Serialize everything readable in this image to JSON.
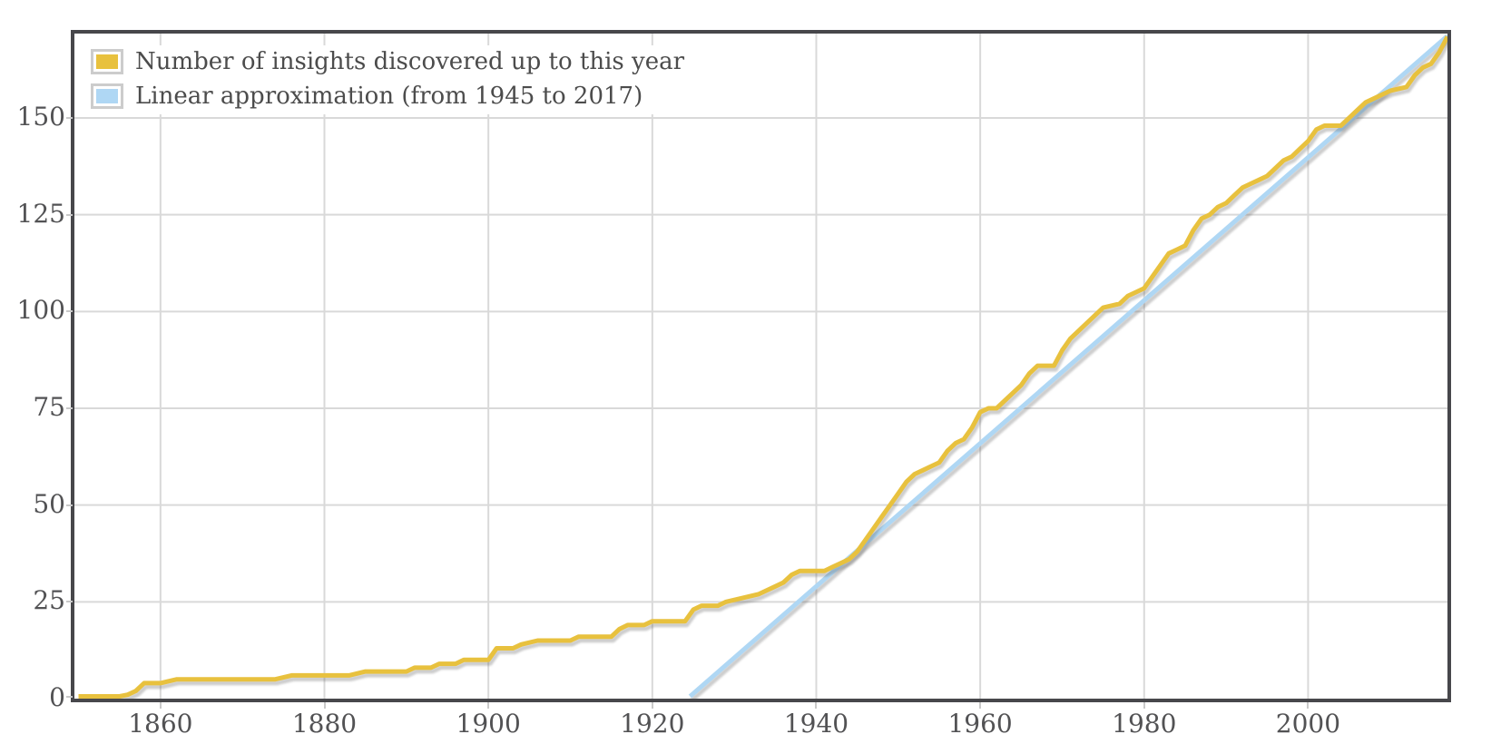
{
  "chart_data": {
    "type": "line",
    "title": "",
    "grid": true,
    "legend_position": "top-left",
    "legend": [
      {
        "label": "Number of insights discovered up to this year",
        "color": "#E8C13E"
      },
      {
        "label": "Linear approximation (from 1945 to 2017)",
        "color": "#AFD7F4"
      }
    ],
    "x_axis": {
      "min": 1849.5,
      "max": 2017,
      "ticks": [
        1860,
        1880,
        1900,
        1920,
        1940,
        1960,
        1980,
        2000
      ]
    },
    "y_axis": {
      "min": 0,
      "max": 171.8,
      "ticks": [
        0,
        25,
        50,
        75,
        100,
        125,
        150
      ]
    },
    "series": [
      {
        "name": "Number of insights discovered up to this year",
        "color": "#E8C13E",
        "points": [
          [
            1850,
            0
          ],
          [
            1855,
            0
          ],
          [
            1856,
            1
          ],
          [
            1857,
            2
          ],
          [
            1858,
            4
          ],
          [
            1860,
            4
          ],
          [
            1862,
            5
          ],
          [
            1874,
            5
          ],
          [
            1876,
            6
          ],
          [
            1883,
            6
          ],
          [
            1885,
            7
          ],
          [
            1890,
            7
          ],
          [
            1891,
            8
          ],
          [
            1893,
            8
          ],
          [
            1894,
            9
          ],
          [
            1896,
            9
          ],
          [
            1897,
            10
          ],
          [
            1900,
            10
          ],
          [
            1901,
            13
          ],
          [
            1903,
            13
          ],
          [
            1904,
            14
          ],
          [
            1906,
            15
          ],
          [
            1910,
            15
          ],
          [
            1911,
            16
          ],
          [
            1915,
            16
          ],
          [
            1916,
            18
          ],
          [
            1917,
            19
          ],
          [
            1919,
            19
          ],
          [
            1920,
            20
          ],
          [
            1924,
            20
          ],
          [
            1925,
            23
          ],
          [
            1926,
            24
          ],
          [
            1928,
            24
          ],
          [
            1929,
            25
          ],
          [
            1931,
            26
          ],
          [
            1933,
            27
          ],
          [
            1934,
            28
          ],
          [
            1935,
            29
          ],
          [
            1936,
            30
          ],
          [
            1937,
            32
          ],
          [
            1938,
            33
          ],
          [
            1941,
            33
          ],
          [
            1942,
            34
          ],
          [
            1943,
            35
          ],
          [
            1944,
            36
          ],
          [
            1945,
            38
          ],
          [
            1946,
            41
          ],
          [
            1947,
            44
          ],
          [
            1948,
            47
          ],
          [
            1949,
            50
          ],
          [
            1950,
            53
          ],
          [
            1951,
            56
          ],
          [
            1952,
            58
          ],
          [
            1953,
            59
          ],
          [
            1954,
            60
          ],
          [
            1955,
            61
          ],
          [
            1956,
            64
          ],
          [
            1957,
            66
          ],
          [
            1958,
            67
          ],
          [
            1959,
            70
          ],
          [
            1960,
            74
          ],
          [
            1961,
            75
          ],
          [
            1962,
            75
          ],
          [
            1963,
            77
          ],
          [
            1964,
            79
          ],
          [
            1965,
            81
          ],
          [
            1966,
            84
          ],
          [
            1967,
            86
          ],
          [
            1969,
            86
          ],
          [
            1970,
            90
          ],
          [
            1971,
            93
          ],
          [
            1972,
            95
          ],
          [
            1973,
            97
          ],
          [
            1974,
            99
          ],
          [
            1975,
            101
          ],
          [
            1977,
            102
          ],
          [
            1978,
            104
          ],
          [
            1979,
            105
          ],
          [
            1980,
            106
          ],
          [
            1981,
            109
          ],
          [
            1982,
            112
          ],
          [
            1983,
            115
          ],
          [
            1984,
            116
          ],
          [
            1985,
            117
          ],
          [
            1986,
            121
          ],
          [
            1987,
            124
          ],
          [
            1988,
            125
          ],
          [
            1989,
            127
          ],
          [
            1990,
            128
          ],
          [
            1991,
            130
          ],
          [
            1992,
            132
          ],
          [
            1993,
            133
          ],
          [
            1994,
            134
          ],
          [
            1995,
            135
          ],
          [
            1996,
            137
          ],
          [
            1997,
            139
          ],
          [
            1998,
            140
          ],
          [
            1999,
            142
          ],
          [
            2000,
            144
          ],
          [
            2001,
            147
          ],
          [
            2002,
            148
          ],
          [
            2004,
            148
          ],
          [
            2005,
            150
          ],
          [
            2006,
            152
          ],
          [
            2007,
            154
          ],
          [
            2008,
            155
          ],
          [
            2009,
            156
          ],
          [
            2010,
            157
          ],
          [
            2012,
            158
          ],
          [
            2013,
            161
          ],
          [
            2014,
            163
          ],
          [
            2015,
            164
          ],
          [
            2016,
            167
          ],
          [
            2017,
            171
          ]
        ]
      },
      {
        "name": "Linear approximation (from 1945 to 2017)",
        "color": "#AFD7F4",
        "points": [
          [
            1924.6,
            0
          ],
          [
            2017,
            171.2
          ]
        ]
      }
    ],
    "colors": {
      "gridline": "#d9d9d9",
      "plot_border": "#47474b",
      "tick_label": "#525254",
      "legend_text": "#4c4c4c",
      "background": "#ffffff"
    }
  }
}
